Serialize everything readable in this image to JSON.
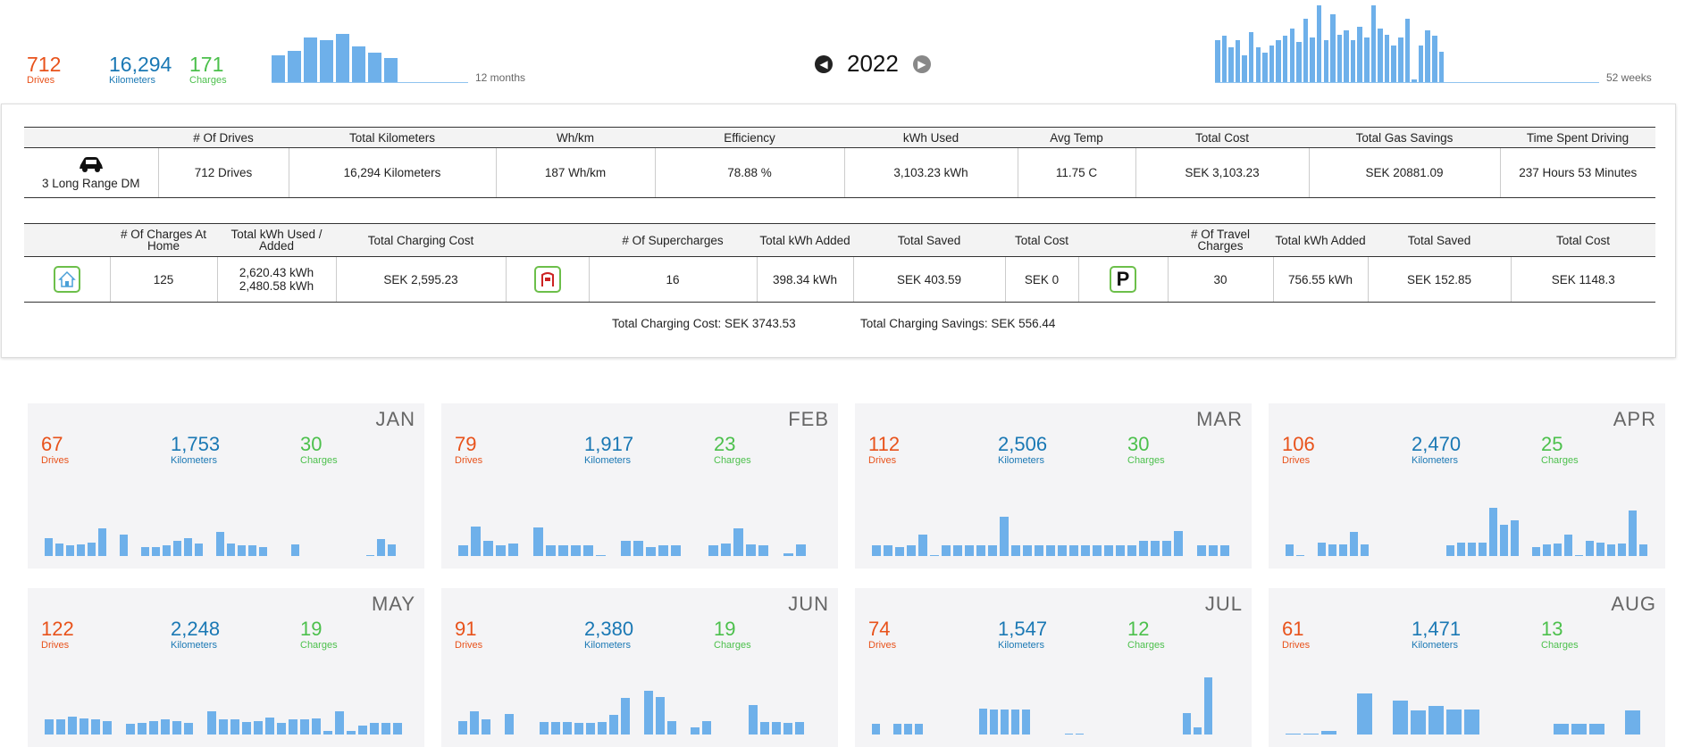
{
  "summary": {
    "drives": "712",
    "drives_label": "Drives",
    "km": "16,294",
    "km_label": "Kilometers",
    "charges": "171",
    "charges_label": "Charges",
    "months_label": "12 months",
    "weeks_label": "52 weeks",
    "monthly_drives": [
      67,
      79,
      112,
      106,
      122,
      91,
      74,
      61,
      0,
      0,
      0,
      0
    ],
    "weekly_activity": [
      55,
      60,
      45,
      55,
      35,
      65,
      45,
      38,
      48,
      55,
      60,
      70,
      52,
      82,
      58,
      100,
      55,
      88,
      62,
      68,
      55,
      72,
      58,
      100,
      70,
      62,
      48,
      58,
      82,
      3,
      48,
      68,
      60,
      40,
      0,
      0,
      0,
      0,
      0,
      0,
      0,
      0,
      0,
      0,
      0,
      0,
      0,
      0,
      0,
      0,
      0,
      0
    ]
  },
  "nav": {
    "year": "2022",
    "prev_icon": "arrow-left-icon",
    "next_icon": "arrow-right-icon"
  },
  "vehicle_table": {
    "headers": [
      "",
      "# Of Drives",
      "Total Kilometers",
      "Wh/km",
      "Efficiency",
      "kWh Used",
      "Avg Temp",
      "Total Cost",
      "Total Gas Savings",
      "Time Spent Driving"
    ],
    "car_name": "3 Long Range DM",
    "row": [
      "712 Drives",
      "16,294 Kilometers",
      "187 Wh/km",
      "78.88 %",
      "3,103.23 kWh",
      "11.75 C",
      "SEK 3,103.23",
      "SEK 20881.09",
      "237 Hours 53 Minutes"
    ]
  },
  "charging_table": {
    "headers": [
      "",
      "# Of Charges At Home",
      "Total kWh Used / Added",
      "Total Charging Cost",
      "",
      "# Of Supercharges",
      "Total kWh Added",
      "Total Saved",
      "Total Cost",
      "",
      "# Of Travel Charges",
      "Total kWh Added",
      "Total Saved",
      "Total Cost"
    ],
    "home_charges": "125",
    "home_kwh_used": "2,620.43 kWh",
    "home_kwh_added": "2,480.58 kWh",
    "home_cost": "SEK 2,595.23",
    "supercharges": "16",
    "sc_kwh": "398.34 kWh",
    "sc_saved": "SEK 403.59",
    "sc_cost": "SEK 0",
    "travel_charges": "30",
    "travel_kwh": "756.55 kWh",
    "travel_saved": "SEK 152.85",
    "travel_cost": "SEK 1148.3",
    "parking_letter": "P"
  },
  "totals": {
    "charging_cost": "Total Charging Cost: SEK 3743.53",
    "charging_savings": "Total Charging Savings: SEK 556.44"
  },
  "months": [
    {
      "name": "JAN",
      "drives": "67",
      "km": "1,753",
      "charges": "30",
      "bars": [
        16,
        11,
        9,
        10,
        12,
        24,
        0,
        19,
        0,
        8,
        8,
        9,
        13,
        16,
        11,
        0,
        21,
        11,
        9,
        9,
        8,
        0,
        0,
        10,
        0,
        0,
        0,
        0,
        0,
        0,
        1,
        15,
        10
      ]
    },
    {
      "name": "FEB",
      "drives": "79",
      "km": "1,917",
      "charges": "23",
      "bars": [
        9,
        26,
        13,
        9,
        11,
        0,
        25,
        9,
        9,
        9,
        9,
        1,
        0,
        13,
        13,
        8,
        9,
        9,
        0,
        0,
        9,
        11,
        24,
        10,
        9,
        0,
        2,
        10
      ]
    },
    {
      "name": "MAR",
      "drives": "112",
      "km": "2,506",
      "charges": "30",
      "bars": [
        9,
        9,
        8,
        9,
        19,
        1,
        9,
        9,
        9,
        9,
        9,
        34,
        9,
        9,
        9,
        9,
        9,
        9,
        9,
        9,
        9,
        9,
        9,
        13,
        13,
        13,
        22,
        0,
        9,
        9,
        9
      ]
    },
    {
      "name": "APR",
      "drives": "106",
      "km": "2,470",
      "charges": "25",
      "bars": [
        10,
        1,
        0,
        12,
        10,
        10,
        21,
        10,
        0,
        0,
        0,
        0,
        0,
        0,
        0,
        9,
        12,
        12,
        12,
        42,
        27,
        31,
        0,
        8,
        10,
        11,
        19,
        1,
        13,
        12,
        10,
        11,
        40,
        10
      ]
    },
    {
      "name": "MAY",
      "drives": "122",
      "km": "2,248",
      "charges": "19",
      "bars": [
        13,
        13,
        16,
        14,
        13,
        12,
        0,
        9,
        10,
        12,
        13,
        12,
        10,
        0,
        20,
        13,
        13,
        11,
        12,
        15,
        10,
        13,
        13,
        14,
        3,
        20,
        3,
        8,
        10,
        10,
        10
      ]
    },
    {
      "name": "JUN",
      "drives": "91",
      "km": "2,380",
      "charges": "19",
      "bars": [
        12,
        20,
        13,
        0,
        18,
        0,
        0,
        11,
        11,
        11,
        10,
        10,
        11,
        17,
        32,
        0,
        38,
        33,
        12,
        0,
        6,
        12,
        0,
        0,
        0,
        26,
        11,
        11,
        10,
        11
      ]
    },
    {
      "name": "JUL",
      "drives": "74",
      "km": "1,547",
      "charges": "12",
      "bars": [
        9,
        0,
        9,
        9,
        9,
        0,
        0,
        0,
        0,
        0,
        23,
        22,
        22,
        22,
        22,
        0,
        0,
        0,
        1,
        1,
        0,
        0,
        0,
        0,
        0,
        0,
        0,
        0,
        0,
        19,
        6,
        50
      ]
    },
    {
      "name": "AUG",
      "drives": "61",
      "km": "1,471",
      "charges": "13",
      "bars": [
        1,
        1,
        3,
        0,
        36,
        0,
        30,
        21,
        25,
        22,
        22,
        0,
        0,
        0,
        0,
        9,
        9,
        9,
        0,
        21
      ]
    }
  ],
  "labels": {
    "drives": "Drives",
    "km": "Kilometers",
    "charges": "Charges"
  },
  "colors": {
    "drives": "#e8521b",
    "km": "#1a78b4",
    "charges": "#4cc04c",
    "bar": "#6eb0ea"
  }
}
